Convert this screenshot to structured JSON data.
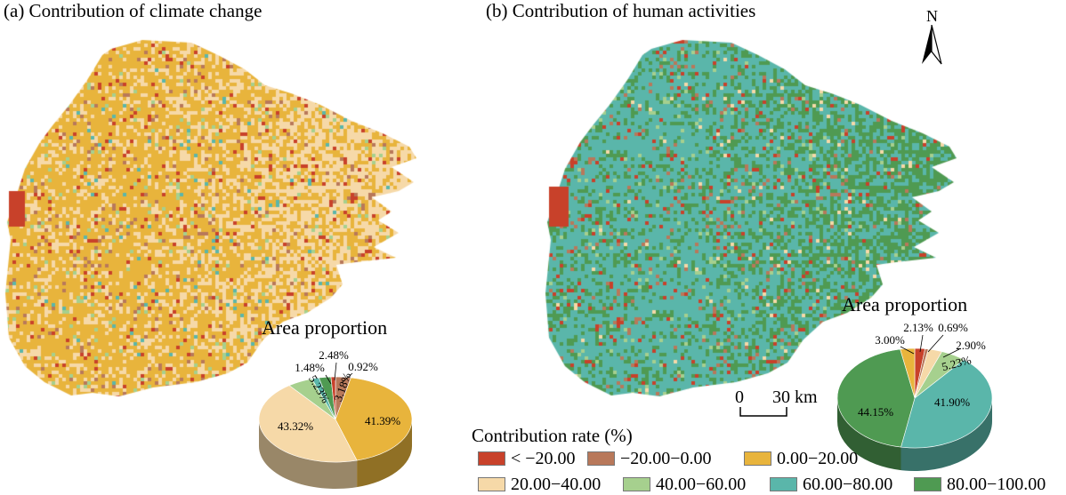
{
  "panels": [
    {
      "title": "(a) Contribution of climate change"
    },
    {
      "title": "(b) Contribution of human activities"
    }
  ],
  "pie_a": {
    "title": "Area proportion",
    "slices": [
      {
        "class_index": 1,
        "value": 3.18,
        "label": "3.18%"
      },
      {
        "class_index": 2,
        "value": 41.39,
        "label": "41.39%"
      },
      {
        "class_index": 3,
        "value": 43.32,
        "label": "43.32%"
      },
      {
        "class_index": 4,
        "value": 5.23,
        "label": "5.23%"
      },
      {
        "class_index": 5,
        "value": 1.48,
        "label": "1.48%"
      },
      {
        "class_index": 6,
        "value": 2.48,
        "label": "2.48%"
      },
      {
        "class_index": 0,
        "value": 0.92,
        "label": "0.92%"
      }
    ]
  },
  "pie_b": {
    "title": "Area proportion",
    "slices": [
      {
        "class_index": 0,
        "value": 2.13,
        "label": "2.13%"
      },
      {
        "class_index": 1,
        "value": 0.69,
        "label": "0.69%"
      },
      {
        "class_index": 3,
        "value": 2.9,
        "label": "2.90%"
      },
      {
        "class_index": 4,
        "value": 5.23,
        "label": "5.23%"
      },
      {
        "class_index": 5,
        "value": 41.9,
        "label": "41.90%"
      },
      {
        "class_index": 6,
        "value": 44.15,
        "label": "44.15%"
      },
      {
        "class_index": 2,
        "value": 3.0,
        "label": "3.00%"
      }
    ]
  },
  "legend": {
    "title": "Contribution rate (%)",
    "classes": [
      {
        "label": "< −20.00",
        "color": "#c8412a"
      },
      {
        "label": "−20.00−0.00",
        "color": "#b8785a"
      },
      {
        "label": "0.00−20.00",
        "color": "#e8b43c"
      },
      {
        "label": "20.00−40.00",
        "color": "#f6d9a8"
      },
      {
        "label": "40.00−60.00",
        "color": "#a6d08e"
      },
      {
        "label": "60.00−80.00",
        "color": "#5ab6aa"
      },
      {
        "label": "80.00−100.00",
        "color": "#4f9a52"
      }
    ]
  },
  "scale_bar": {
    "start": "0",
    "end": "30 km"
  },
  "north_arrow": {
    "letter": "N"
  },
  "maps": {
    "a": {
      "dominant_class": 2,
      "secondary_class": 3
    },
    "b": {
      "dominant_class": 5,
      "secondary_class": 6
    }
  }
}
